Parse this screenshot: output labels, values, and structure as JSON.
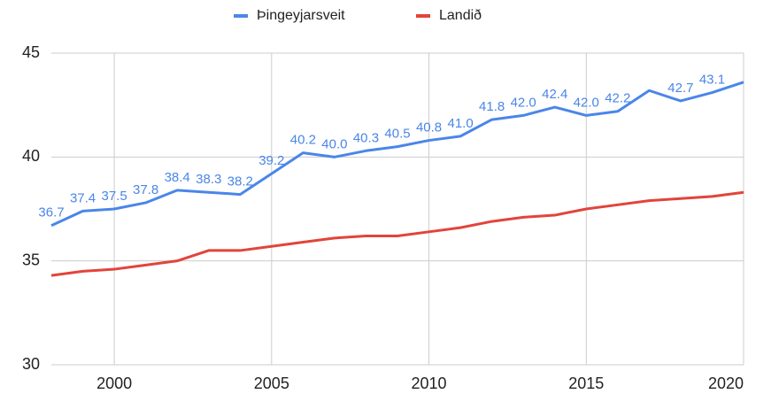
{
  "chart_data": {
    "type": "line",
    "x": [
      1998,
      1999,
      2000,
      2001,
      2002,
      2003,
      2004,
      2005,
      2006,
      2007,
      2008,
      2009,
      2010,
      2011,
      2012,
      2013,
      2014,
      2015,
      2016,
      2017,
      2018,
      2019,
      2020
    ],
    "series": [
      {
        "name": "Þingeyjarsveit",
        "color": "#4a86e8",
        "values": [
          36.7,
          37.4,
          37.5,
          37.8,
          38.4,
          38.3,
          38.2,
          39.2,
          40.2,
          40.0,
          40.3,
          40.5,
          40.8,
          41.0,
          41.8,
          42.0,
          42.4,
          42.0,
          42.2,
          43.2,
          42.7,
          43.1,
          43.6
        ],
        "value_labels": [
          "36.7",
          "37.4",
          "37.5",
          "37.8",
          "38.4",
          "38.3",
          "38.2",
          "39.2",
          "40.2",
          "40.0",
          "40.3",
          "40.5",
          "40.8",
          "41.0",
          "41.8",
          "42.0",
          "42.4",
          "42.0",
          "42.2",
          null,
          "42.7",
          "43.1",
          null
        ]
      },
      {
        "name": "Landið",
        "color": "#e2443a",
        "values": [
          34.3,
          34.5,
          34.6,
          34.8,
          35.0,
          35.5,
          35.5,
          35.7,
          35.9,
          36.1,
          36.2,
          36.2,
          36.4,
          36.6,
          36.9,
          37.1,
          37.2,
          37.5,
          37.7,
          37.9,
          38.0,
          38.1,
          38.3
        ]
      }
    ],
    "xlim": [
      1998,
      2020
    ],
    "xticks": [
      2000,
      2005,
      2010,
      2015,
      2020
    ],
    "ylim": [
      30,
      45
    ],
    "yticks": [
      30,
      35,
      40,
      45
    ],
    "grid": true,
    "legend": "top"
  }
}
